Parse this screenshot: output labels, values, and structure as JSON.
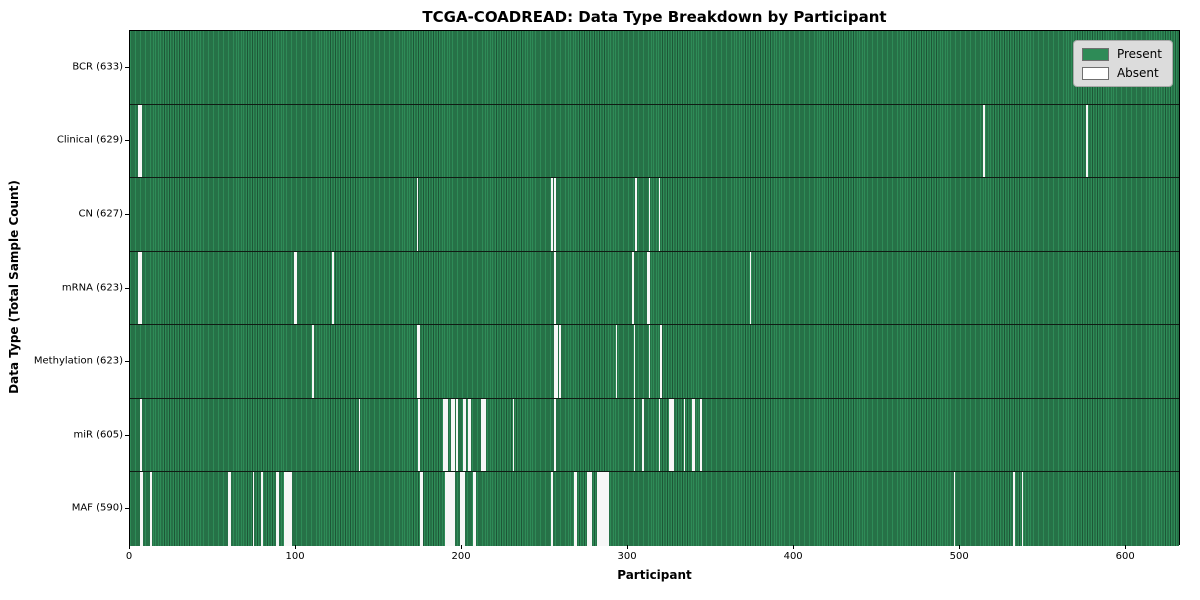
{
  "chart_data": {
    "type": "heatmap",
    "title": "TCGA-COADREAD: Data Type Breakdown by Participant",
    "xlabel": "Participant",
    "ylabel": "Data Type (Total Sample Count)",
    "x_ticks": [
      0,
      100,
      200,
      300,
      400,
      500,
      600
    ],
    "xlim": [
      0,
      633
    ],
    "n_participants": 633,
    "grid": false,
    "legend_position": "upper right",
    "legend": [
      {
        "label": "Present",
        "color": "#2e8b57"
      },
      {
        "label": "Absent",
        "color": "#ffffff"
      }
    ],
    "colors": {
      "present": "#2e8b57",
      "cell_edge": "#1d5737",
      "absent": "#f7f7f7",
      "legend_bg": "#dcdcdc",
      "row_separator": "#101c14"
    },
    "rows": [
      {
        "label": "BCR (633)",
        "data_type": "BCR",
        "total_samples": 633,
        "absent_participants": []
      },
      {
        "label": "Clinical (629)",
        "data_type": "Clinical",
        "total_samples": 629,
        "absent_participants": [
          5,
          6,
          515,
          577
        ]
      },
      {
        "label": "CN (627)",
        "data_type": "CN",
        "total_samples": 627,
        "absent_participants": [
          173,
          254,
          256,
          305,
          313,
          319
        ]
      },
      {
        "label": "mRNA (623)",
        "data_type": "mRNA",
        "total_samples": 623,
        "absent_participants": [
          5,
          6,
          99,
          100,
          122,
          256,
          303,
          312,
          313,
          374
        ]
      },
      {
        "label": "Methylation (623)",
        "data_type": "Methylation",
        "total_samples": 623,
        "absent_participants": [
          110,
          173,
          174,
          256,
          257,
          259,
          293,
          304,
          313,
          320
        ]
      },
      {
        "label": "miR (605)",
        "data_type": "miR",
        "total_samples": 605,
        "absent_participants": [
          6,
          138,
          174,
          189,
          190,
          191,
          194,
          195,
          197,
          201,
          202,
          204,
          205,
          212,
          213,
          214,
          231,
          256,
          304,
          309,
          319,
          325,
          326,
          327,
          334,
          339,
          340,
          344
        ]
      },
      {
        "label": "MAF (590)",
        "data_type": "MAF",
        "total_samples": 590,
        "absent_participants": [
          6,
          7,
          12,
          59,
          60,
          74,
          79,
          88,
          89,
          93,
          94,
          95,
          96,
          97,
          175,
          176,
          190,
          191,
          192,
          193,
          194,
          195,
          199,
          200,
          201,
          207,
          208,
          254,
          268,
          269,
          276,
          277,
          278,
          282,
          283,
          284,
          285,
          286,
          287,
          288,
          497,
          533,
          538
        ]
      }
    ]
  }
}
